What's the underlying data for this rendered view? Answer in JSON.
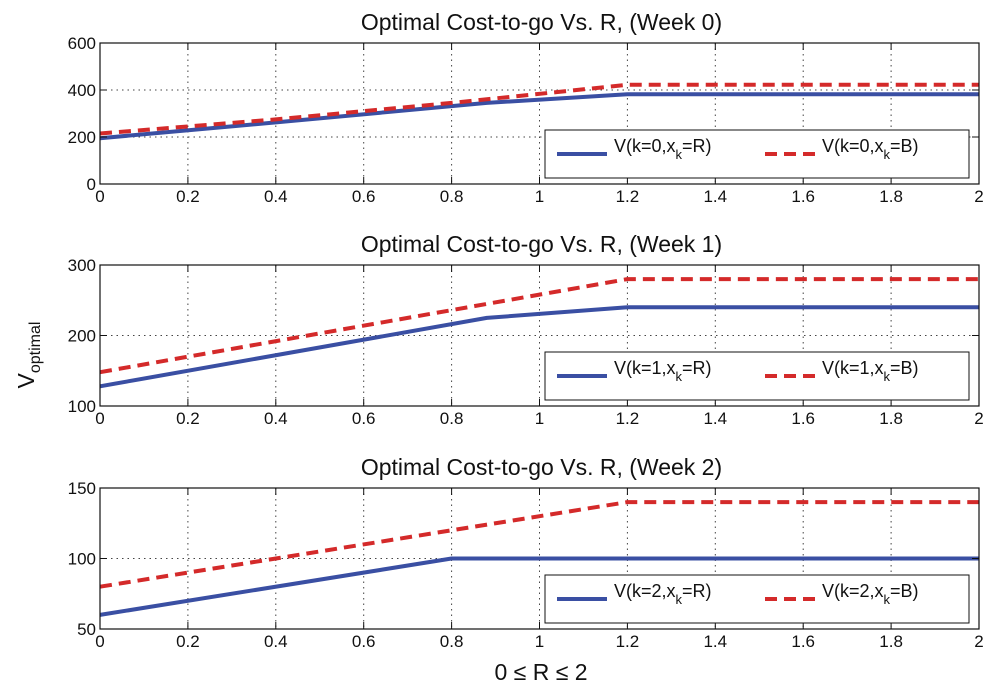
{
  "figure": {
    "ylabel": "V",
    "ylabel_sub": "optimal",
    "xlabel": "0 ≤ R ≤ 2"
  },
  "chart_data": [
    {
      "type": "line",
      "title": "Optimal Cost-to-go Vs. R, (Week 0)",
      "xlim": [
        0,
        2
      ],
      "ylim": [
        0,
        600
      ],
      "xticks": [
        0,
        0.2,
        0.4,
        0.6,
        0.8,
        1,
        1.2,
        1.4,
        1.6,
        1.8,
        2
      ],
      "xtick_labels": [
        "0",
        "0.2",
        "0.4",
        "0.6",
        "0.8",
        "1",
        "1.2",
        "1.4",
        "1.6",
        "1.8",
        "2"
      ],
      "yticks": [
        0,
        200,
        400,
        600
      ],
      "ytick_labels": [
        "0",
        "200",
        "400",
        "600"
      ],
      "grid": true,
      "legend_position": "bottom-right",
      "series": [
        {
          "name": "V(k=0,x=R)",
          "legend_main": "V(k=0,x",
          "legend_sub": "k",
          "legend_tail": "=R)",
          "style": "solid",
          "color": "#3a4fa3",
          "x": [
            0,
            0.4,
            0.88,
            1.2,
            2
          ],
          "y": [
            195,
            262,
            345,
            382,
            382
          ]
        },
        {
          "name": "V(k=0,x=B)",
          "legend_main": "V(k=0,x",
          "legend_sub": "k",
          "legend_tail": "=B)",
          "style": "dashed",
          "color": "#d42a2a",
          "x": [
            0,
            0.4,
            0.8,
            1.2,
            2
          ],
          "y": [
            215,
            275,
            345,
            422,
            422
          ]
        }
      ]
    },
    {
      "type": "line",
      "title": "Optimal Cost-to-go Vs. R, (Week 1)",
      "xlim": [
        0,
        2
      ],
      "ylim": [
        100,
        300
      ],
      "xticks": [
        0,
        0.2,
        0.4,
        0.6,
        0.8,
        1,
        1.2,
        1.4,
        1.6,
        1.8,
        2
      ],
      "xtick_labels": [
        "0",
        "0.2",
        "0.4",
        "0.6",
        "0.8",
        "1",
        "1.2",
        "1.4",
        "1.6",
        "1.8",
        "2"
      ],
      "yticks": [
        100,
        200,
        300
      ],
      "ytick_labels": [
        "100",
        "200",
        "300"
      ],
      "grid": true,
      "legend_position": "bottom-right",
      "series": [
        {
          "name": "V(k=1,x=R)",
          "legend_main": "V(k=1,x",
          "legend_sub": "k",
          "legend_tail": "=R)",
          "style": "solid",
          "color": "#3a4fa3",
          "x": [
            0,
            0.88,
            1.2,
            2
          ],
          "y": [
            128,
            225,
            240,
            240
          ]
        },
        {
          "name": "V(k=1,x=B)",
          "legend_main": "V(k=1,x",
          "legend_sub": "k",
          "legend_tail": "=B)",
          "style": "dashed",
          "color": "#d42a2a",
          "x": [
            0,
            1.2,
            2
          ],
          "y": [
            148,
            280,
            280
          ]
        }
      ]
    },
    {
      "type": "line",
      "title": "Optimal Cost-to-go Vs. R, (Week 2)",
      "xlim": [
        0,
        2
      ],
      "ylim": [
        50,
        150
      ],
      "xticks": [
        0,
        0.2,
        0.4,
        0.6,
        0.8,
        1,
        1.2,
        1.4,
        1.6,
        1.8,
        2
      ],
      "xtick_labels": [
        "0",
        "0.2",
        "0.4",
        "0.6",
        "0.8",
        "1",
        "1.2",
        "1.4",
        "1.6",
        "1.8",
        "2"
      ],
      "yticks": [
        50,
        100,
        150
      ],
      "ytick_labels": [
        "50",
        "100",
        "150"
      ],
      "grid": true,
      "legend_position": "bottom-right",
      "series": [
        {
          "name": "V(k=2,x=R)",
          "legend_main": "V(k=2,x",
          "legend_sub": "k",
          "legend_tail": "=R)",
          "style": "solid",
          "color": "#3a4fa3",
          "x": [
            0,
            0.8,
            2
          ],
          "y": [
            60,
            100,
            100
          ]
        },
        {
          "name": "V(k=2,x=B)",
          "legend_main": "V(k=2,x",
          "legend_sub": "k",
          "legend_tail": "=B)",
          "style": "dashed",
          "color": "#d42a2a",
          "x": [
            0,
            1.2,
            2
          ],
          "y": [
            80,
            140,
            140
          ]
        }
      ]
    }
  ]
}
